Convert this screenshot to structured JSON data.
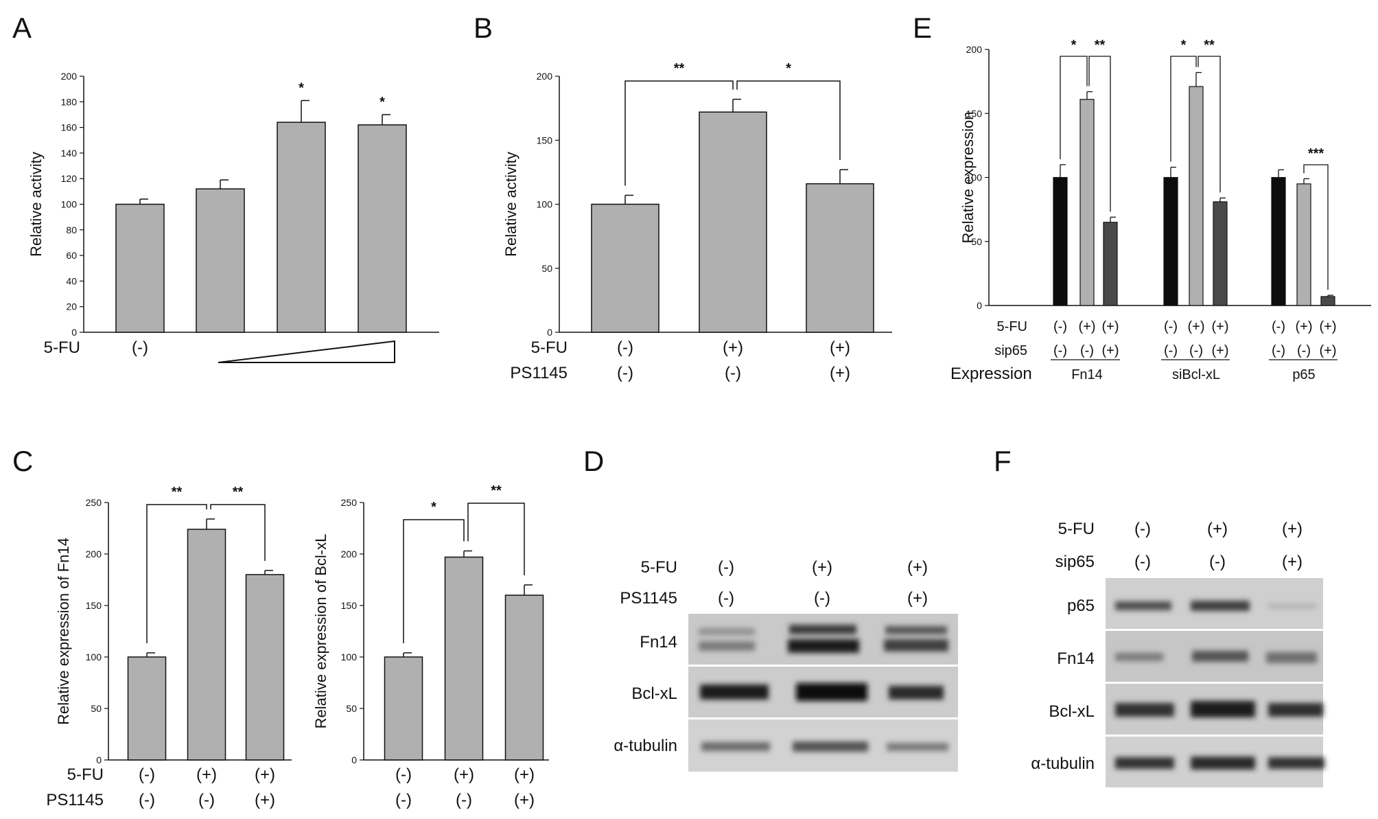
{
  "panels": {
    "A": "A",
    "B": "B",
    "C": "C",
    "D": "D",
    "E": "E",
    "F": "F"
  },
  "chart_data": [
    {
      "id": "A",
      "type": "bar",
      "categories": [
        "(-)",
        "",
        "",
        ""
      ],
      "values": [
        100,
        112,
        164,
        162
      ],
      "errors": [
        4,
        7,
        17,
        8
      ],
      "colors": [
        "#b0b0b0",
        "#b0b0b0",
        "#b0b0b0",
        "#b0b0b0"
      ],
      "ylabel": "Relative activity",
      "ylim": [
        0,
        200
      ],
      "yticks": [
        0,
        20,
        40,
        60,
        80,
        100,
        120,
        140,
        160,
        180,
        200
      ],
      "significance_marks": [
        "",
        "",
        "*",
        "*"
      ],
      "conditions": [
        {
          "label": "5-FU",
          "values": [
            "(-)",
            "",
            "",
            ""
          ]
        }
      ]
    },
    {
      "id": "B",
      "type": "bar",
      "categories": [
        "(-)",
        "(+)",
        "(+)"
      ],
      "values": [
        100,
        172,
        116
      ],
      "errors": [
        7,
        10,
        11
      ],
      "colors": [
        "#b0b0b0",
        "#b0b0b0",
        "#b0b0b0"
      ],
      "ylabel": "Relative activity",
      "ylim": [
        0,
        200
      ],
      "yticks": [
        0,
        50,
        100,
        150,
        200
      ],
      "brackets": [
        {
          "from": 0,
          "to": 1,
          "label": "**"
        },
        {
          "from": 1,
          "to": 2,
          "label": "*"
        }
      ],
      "conditions": [
        {
          "label": "5-FU",
          "values": [
            "(-)",
            "(+)",
            "(+)"
          ]
        },
        {
          "label": "PS1145",
          "values": [
            "(-)",
            "(-)",
            "(+)"
          ]
        }
      ]
    },
    {
      "id": "C1",
      "type": "bar",
      "categories": [
        "(-)",
        "(+)",
        "(+)"
      ],
      "values": [
        100,
        224,
        180
      ],
      "errors": [
        4,
        10,
        4
      ],
      "colors": [
        "#b0b0b0",
        "#b0b0b0",
        "#b0b0b0"
      ],
      "ylabel": "Relative expression of Fn14",
      "ylim": [
        0,
        250
      ],
      "yticks": [
        0,
        50,
        100,
        150,
        200,
        250
      ],
      "brackets": [
        {
          "from": 0,
          "to": 1,
          "label": "**"
        },
        {
          "from": 1,
          "to": 2,
          "label": "**"
        }
      ],
      "conditions": [
        {
          "label": "5-FU",
          "values": [
            "(-)",
            "(+)",
            "(+)"
          ]
        },
        {
          "label": "PS1145",
          "values": [
            "(-)",
            "(-)",
            "(+)"
          ]
        }
      ]
    },
    {
      "id": "C2",
      "type": "bar",
      "categories": [
        "(-)",
        "(+)",
        "(+)"
      ],
      "values": [
        100,
        197,
        160
      ],
      "errors": [
        4,
        6,
        10
      ],
      "colors": [
        "#b0b0b0",
        "#b0b0b0",
        "#b0b0b0"
      ],
      "ylabel": "Relative expression of Bcl-xL",
      "ylim": [
        0,
        250
      ],
      "yticks": [
        0,
        50,
        100,
        150,
        200,
        250
      ],
      "brackets": [
        {
          "from": 0,
          "to": 1,
          "label": "*"
        },
        {
          "from": 1,
          "to": 2,
          "label": "**"
        }
      ],
      "conditions": [
        {
          "values": [
            "(-)",
            "(+)",
            "(+)"
          ]
        },
        {
          "values": [
            "(-)",
            "(-)",
            "(+)"
          ]
        }
      ]
    },
    {
      "id": "E",
      "type": "bar",
      "ylabel": "Relative expression",
      "ylim": [
        0,
        200
      ],
      "yticks": [
        0,
        50,
        100,
        150,
        200
      ],
      "groups": [
        {
          "name": "Fn14",
          "values": [
            100,
            161,
            65
          ],
          "errors": [
            10,
            6,
            4
          ],
          "brackets": [
            {
              "from": 0,
              "to": 1,
              "label": "*"
            },
            {
              "from": 1,
              "to": 2,
              "label": "**"
            }
          ]
        },
        {
          "name": "siBcl-xL",
          "values": [
            100,
            171,
            81
          ],
          "errors": [
            8,
            11,
            3
          ],
          "brackets": [
            {
              "from": 0,
              "to": 1,
              "label": "*"
            },
            {
              "from": 1,
              "to": 2,
              "label": "**"
            }
          ]
        },
        {
          "name": "p65",
          "values": [
            100,
            95,
            7
          ],
          "errors": [
            6,
            4,
            1
          ],
          "brackets": [
            {
              "from": 1,
              "to": 2,
              "label": "***"
            }
          ]
        }
      ],
      "bar_colors": [
        "#0d0d0d",
        "#b0b0b0",
        "#4a4a4a"
      ],
      "conditions": [
        {
          "label": "5-FU",
          "values": [
            "(-)",
            "(+)",
            "(+)"
          ]
        },
        {
          "label": "sip65",
          "values": [
            "(-)",
            "(-)",
            "(+)"
          ]
        }
      ],
      "group_row_label": "Expression"
    }
  ],
  "blots": {
    "D": {
      "conditions": [
        {
          "label": "5-FU",
          "values": [
            "(-)",
            "(+)",
            "(+)"
          ]
        },
        {
          "label": "PS1145",
          "values": [
            "(-)",
            "(-)",
            "(+)"
          ]
        }
      ],
      "rows": [
        "Fn14",
        "Bcl-xL",
        "α-tubulin"
      ]
    },
    "F": {
      "conditions": [
        {
          "label": "5-FU",
          "values": [
            "(-)",
            "(+)",
            "(+)"
          ]
        },
        {
          "label": "sip65",
          "values": [
            "(-)",
            "(-)",
            "(+)"
          ]
        }
      ],
      "rows": [
        "p65",
        "Fn14",
        "Bcl-xL",
        "α-tubulin"
      ]
    }
  }
}
